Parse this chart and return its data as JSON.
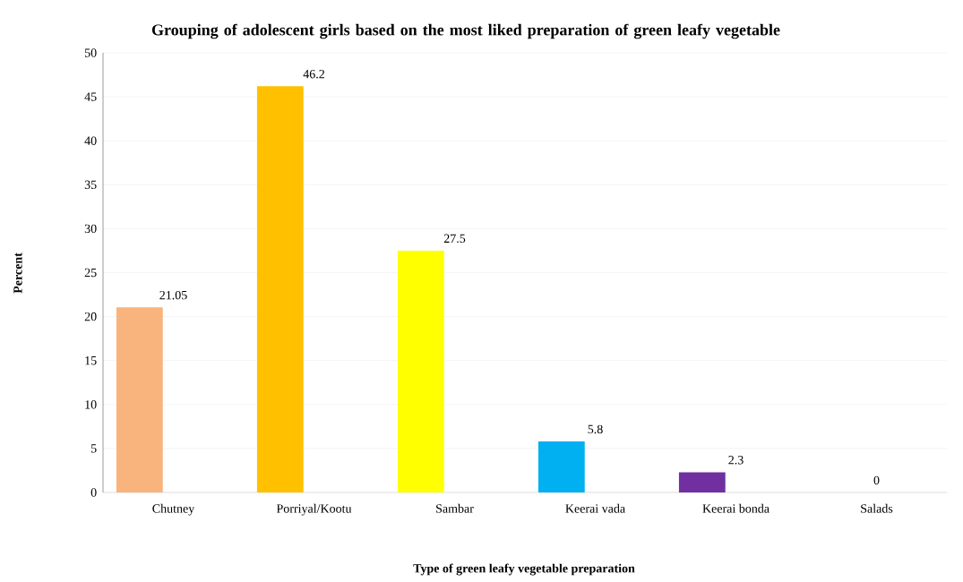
{
  "chart_data": {
    "type": "bar",
    "title": "Grouping of adolescent girls based on the most liked preparation of green leafy vegetable",
    "xlabel": "Type of green leafy vegetable preparation",
    "ylabel": "Percent",
    "categories": [
      "Chutney",
      "Porriyal/Kootu",
      "Sambar",
      "Keerai vada",
      "Keerai bonda",
      "Salads"
    ],
    "values": [
      21.05,
      46.2,
      27.5,
      5.8,
      2.3,
      0
    ],
    "colors": [
      "#f8b47c",
      "#ffc000",
      "#ffff00",
      "#00b0f0",
      "#7030a0",
      "#a5a5a5"
    ],
    "ylim": [
      0,
      50
    ],
    "yticks": [
      0,
      5,
      10,
      15,
      20,
      25,
      30,
      35,
      40,
      45,
      50
    ],
    "grid": "y",
    "data_labels": true
  }
}
